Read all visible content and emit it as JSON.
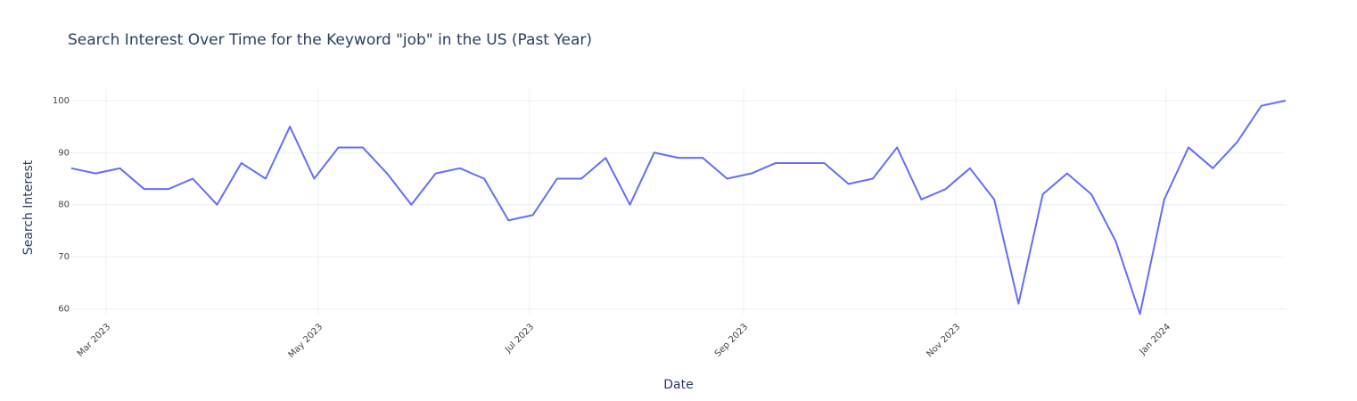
{
  "chart_data": {
    "type": "line",
    "title": "Search Interest Over Time for the Keyword \"job\" in the US (Past Year)",
    "x_label": "Date",
    "y_label": "Search Interest",
    "categories": [
      null,
      null,
      null,
      null,
      null,
      null,
      null,
      null,
      null,
      null,
      null,
      null,
      null,
      null,
      null,
      null,
      null,
      null,
      null,
      null,
      null,
      null,
      null,
      null,
      null,
      null,
      null,
      null,
      null,
      null,
      null,
      null,
      null,
      null,
      null,
      null,
      null,
      null,
      null,
      null,
      null,
      null,
      null,
      null,
      null,
      null,
      null,
      null,
      null,
      null,
      null
    ],
    "values": [
      87,
      86,
      87,
      83,
      83,
      85,
      80,
      88,
      85,
      95,
      85,
      91,
      91,
      86,
      80,
      86,
      87,
      85,
      77,
      78,
      85,
      85,
      89,
      80,
      90,
      89,
      89,
      85,
      86,
      88,
      88,
      88,
      84,
      85,
      91,
      81,
      83,
      87,
      81,
      61,
      82,
      86,
      82,
      73,
      59,
      81,
      91,
      87,
      92,
      99,
      100
    ],
    "color": "#636efa",
    "xlim": [
      0,
      50
    ],
    "xticks": [
      {
        "value": 1.43,
        "label": "Mar 2023"
      },
      {
        "value": 10.17,
        "label": "May 2023"
      },
      {
        "value": 18.87,
        "label": "Jul 2023"
      },
      {
        "value": 27.68,
        "label": "Sep 2023"
      },
      {
        "value": 36.42,
        "label": "Nov 2023"
      },
      {
        "value": 45.08,
        "label": "Jan 2024"
      }
    ],
    "ylim": [
      58.9,
      102.2
    ],
    "yticks": [
      60,
      70,
      80,
      90,
      100
    ],
    "grid": true
  }
}
